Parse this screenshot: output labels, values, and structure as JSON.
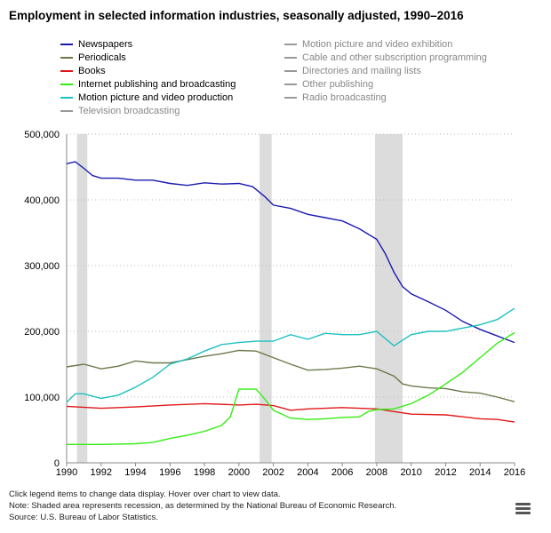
{
  "chart_data": {
    "type": "line",
    "title": "Employment in selected information industries, seasonally adjusted, 1990–2016",
    "xlim": [
      1990,
      2016
    ],
    "ylim": [
      0,
      500000
    ],
    "x_ticks": [
      "1990",
      "1992",
      "1994",
      "1996",
      "1998",
      "2000",
      "2002",
      "2004",
      "2006",
      "2008",
      "2010",
      "2012",
      "2014",
      "2016"
    ],
    "y_ticks": [
      "0",
      "100,000",
      "200,000",
      "300,000",
      "400,000",
      "500,000"
    ],
    "grid": "horizontal dotted",
    "legend_position": "top",
    "recessions": [
      [
        1990.6,
        1991.2
      ],
      [
        2001.2,
        2001.9
      ],
      [
        2007.9,
        2009.5
      ]
    ],
    "recession_color": "#dcdcdc",
    "series": [
      {
        "name": "Newspapers",
        "color": "#1a1ab0",
        "active": true,
        "x": [
          1990,
          1990.5,
          1991,
          1991.5,
          1992,
          1993,
          1994,
          1995,
          1996,
          1997,
          1998,
          1999,
          2000,
          2000.8,
          2001.5,
          2002,
          2003,
          2004,
          2005,
          2006,
          2007,
          2008,
          2008.5,
          2009,
          2009.5,
          2010,
          2011,
          2012,
          2013,
          2014,
          2015,
          2016
        ],
        "y": [
          455000,
          458000,
          448000,
          437000,
          433000,
          433000,
          430000,
          430000,
          425000,
          422000,
          426000,
          424000,
          425000,
          420000,
          405000,
          392000,
          387000,
          378000,
          373000,
          368000,
          356000,
          340000,
          318000,
          290000,
          268000,
          257000,
          245000,
          232000,
          215000,
          203000,
          193000,
          183000
        ]
      },
      {
        "name": "Periodicals",
        "color": "#6b7a4a",
        "active": true,
        "x": [
          1990,
          1991,
          1992,
          1993,
          1994,
          1995,
          1996,
          1997,
          1998,
          1999,
          2000,
          2001,
          2002,
          2003,
          2004,
          2005,
          2006,
          2007,
          2008,
          2009,
          2009.5,
          2010,
          2011,
          2012,
          2013,
          2014,
          2015,
          2016
        ],
        "y": [
          146000,
          150000,
          143000,
          147000,
          155000,
          152000,
          152000,
          157000,
          162000,
          166000,
          171000,
          170000,
          160000,
          150000,
          141000,
          142000,
          144000,
          147000,
          143000,
          132000,
          120000,
          117000,
          114000,
          113000,
          108000,
          106000,
          100000,
          93000
        ]
      },
      {
        "name": "Books",
        "color": "#e01818",
        "active": true,
        "x": [
          1990,
          1992,
          1994,
          1996,
          1998,
          2000,
          2001,
          2002,
          2003,
          2004,
          2006,
          2008,
          2009,
          2010,
          2012,
          2013,
          2014,
          2015,
          2016
        ],
        "y": [
          86000,
          83000,
          85000,
          88000,
          90000,
          88000,
          89000,
          87000,
          80000,
          82000,
          84000,
          82000,
          78000,
          74000,
          73000,
          70000,
          67000,
          66000,
          62000
        ]
      },
      {
        "name": "Internet publishing and broadcasting",
        "color": "#33ee11",
        "active": true,
        "x": [
          1990,
          1992,
          1994,
          1995,
          1996,
          1997,
          1998,
          1999,
          1999.5,
          2000,
          2001,
          2001.5,
          2002,
          2003,
          2004,
          2005,
          2006,
          2007,
          2007.5,
          2008,
          2009,
          2010,
          2011,
          2012,
          2013,
          2014,
          2015,
          2016
        ],
        "y": [
          28000,
          28000,
          29000,
          31000,
          37000,
          42000,
          48000,
          57000,
          70000,
          112000,
          112000,
          97000,
          80000,
          68000,
          66000,
          67000,
          69000,
          70000,
          78000,
          81000,
          82000,
          90000,
          103000,
          120000,
          138000,
          160000,
          182000,
          198000
        ]
      },
      {
        "name": "Motion picture and video production",
        "color": "#1ec0c0",
        "active": true,
        "x": [
          1990,
          1990.5,
          1991,
          1992,
          1993,
          1994,
          1995,
          1996,
          1997,
          1998,
          1999,
          2000,
          2001,
          2002,
          2003,
          2004,
          2005,
          2006,
          2007,
          2008,
          2009,
          2010,
          2011,
          2012,
          2013,
          2014,
          2015,
          2016
        ],
        "y": [
          92000,
          105000,
          105000,
          98000,
          103000,
          115000,
          130000,
          150000,
          158000,
          170000,
          180000,
          183000,
          185000,
          185000,
          195000,
          188000,
          197000,
          195000,
          195000,
          200000,
          178000,
          195000,
          200000,
          200000,
          205000,
          210000,
          218000,
          235000
        ]
      },
      {
        "name": "Television broadcasting",
        "color": "#999999",
        "active": false
      },
      {
        "name": "Motion picture and video exhibition",
        "color": "#999999",
        "active": false
      },
      {
        "name": "Cable and other subscription programming",
        "color": "#999999",
        "active": false
      },
      {
        "name": "Directories and mailing lists",
        "color": "#999999",
        "active": false
      },
      {
        "name": "Other publishing",
        "color": "#999999",
        "active": false
      },
      {
        "name": "Radio broadcasting",
        "color": "#999999",
        "active": false
      }
    ]
  },
  "notes": {
    "hint": "Click legend items to change data display. Hover over chart to view data.",
    "note": "Note: Shaded area represents recession, as determined by the National Bureau of Economic Research.",
    "source": "Source: U.S. Bureau of Labor Statistics."
  },
  "icons": {
    "menu": "hamburger-menu-icon"
  }
}
